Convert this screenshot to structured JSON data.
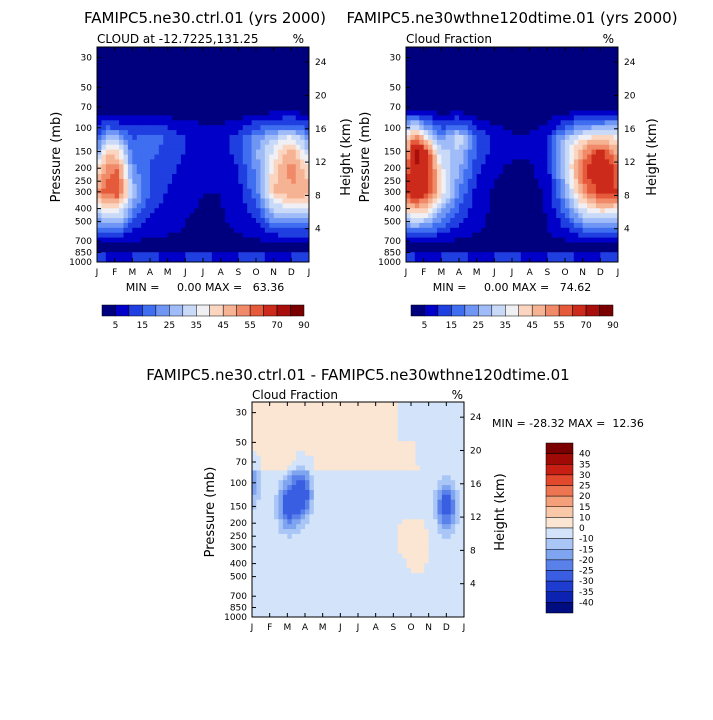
{
  "palette": {
    "sequential": [
      "#00007f",
      "#0000c8",
      "#1f3fe0",
      "#3f6ef0",
      "#6f96f5",
      "#9fbcf8",
      "#c9daf8",
      "#f0f0f4",
      "#fbd5c0",
      "#f5b394",
      "#f08a68",
      "#e65a3c",
      "#cc2a1a",
      "#a80f0a",
      "#7a0000"
    ],
    "diverging_positive": [
      "#fbe5d3",
      "#f8c8a8",
      "#f4a07a",
      "#ee7552",
      "#e2482c",
      "#c81f14",
      "#a00a06",
      "#7a0000"
    ],
    "diverging_negative": [
      "#d3e4fa",
      "#a9c6f6",
      "#7fa4f0",
      "#5a80ea",
      "#3a5ee2",
      "#1f3cd0",
      "#0c22b0",
      "#000d80"
    ]
  },
  "chart_data": [
    {
      "id": "ctrl",
      "type": "contour",
      "title": "FAMIPC5.ne30.ctrl.01 (yrs 2000)",
      "left_label": "CLOUD at -12.7225,131.25",
      "right_label": "%",
      "xlabel": "",
      "ylabel": "Pressure (mb)",
      "y2label": "Height (km)",
      "x_ticks": [
        "J",
        "F",
        "M",
        "A",
        "M",
        "J",
        "J",
        "A",
        "S",
        "O",
        "N",
        "D",
        "J"
      ],
      "y_ticks": [
        30,
        50,
        70,
        100,
        150,
        200,
        250,
        300,
        400,
        500,
        700,
        850,
        1000
      ],
      "y_range_mb": [
        1000,
        25
      ],
      "y2_ticks": [
        24,
        20,
        16,
        12,
        8,
        4
      ],
      "min_max_text": "MIN =     0.00 MAX =   63.36",
      "min": 0.0,
      "max": 63.36,
      "colorbar_labels": [
        "5",
        "15",
        "25",
        "35",
        "45",
        "55",
        "70",
        "90"
      ],
      "colorbar_levels": [
        0,
        5,
        10,
        15,
        20,
        25,
        30,
        35,
        40,
        45,
        50,
        55,
        60,
        70,
        80,
        90
      ],
      "peak_levels_mb": [
        300,
        200,
        150,
        120,
        100
      ],
      "profile": [
        {
          "month": 1,
          "vals": [
            50,
            38,
            22,
            14,
            10
          ]
        },
        {
          "month": 1.5,
          "vals": [
            58,
            52,
            42,
            28,
            16
          ]
        },
        {
          "month": 2.2,
          "vals": [
            60,
            55,
            40,
            28,
            14
          ]
        },
        {
          "month": 3,
          "vals": [
            30,
            22,
            18,
            14,
            10
          ]
        },
        {
          "month": 4,
          "vals": [
            14,
            14,
            16,
            18,
            12
          ]
        },
        {
          "month": 5,
          "vals": [
            10,
            12,
            14,
            14,
            10
          ]
        },
        {
          "month": 6,
          "vals": [
            6,
            8,
            10,
            10,
            8
          ]
        },
        {
          "month": 7,
          "vals": [
            5,
            6,
            8,
            8,
            6
          ]
        },
        {
          "month": 8,
          "vals": [
            5,
            6,
            8,
            8,
            6
          ]
        },
        {
          "month": 9,
          "vals": [
            8,
            10,
            12,
            12,
            8
          ]
        },
        {
          "month": 10,
          "vals": [
            18,
            22,
            24,
            22,
            14
          ]
        },
        {
          "month": 11,
          "vals": [
            45,
            42,
            36,
            30,
            18
          ]
        },
        {
          "month": 12,
          "vals": [
            50,
            52,
            48,
            38,
            20
          ]
        },
        {
          "month": 13,
          "vals": [
            48,
            40,
            30,
            22,
            14
          ]
        }
      ]
    },
    {
      "id": "exp",
      "type": "contour",
      "title": "FAMIPC5.ne30wthne120dtime.01 (yrs 2000)",
      "left_label": "Cloud Fraction",
      "right_label": "%",
      "xlabel": "",
      "ylabel": "Pressure (mb)",
      "y2label": "Height (km)",
      "x_ticks": [
        "J",
        "F",
        "M",
        "A",
        "M",
        "J",
        "J",
        "A",
        "S",
        "O",
        "N",
        "D",
        "J"
      ],
      "y_ticks": [
        30,
        50,
        70,
        100,
        150,
        200,
        250,
        300,
        400,
        500,
        700,
        850,
        1000
      ],
      "y_range_mb": [
        1000,
        25
      ],
      "y2_ticks": [
        24,
        20,
        16,
        12,
        8,
        4
      ],
      "min_max_text": "MIN =     0.00 MAX =   74.62",
      "min": 0.0,
      "max": 74.62,
      "colorbar_labels": [
        "5",
        "15",
        "25",
        "35",
        "45",
        "55",
        "70",
        "90"
      ],
      "colorbar_levels": [
        0,
        5,
        10,
        15,
        20,
        25,
        30,
        35,
        40,
        45,
        50,
        55,
        60,
        70,
        80,
        90
      ],
      "peak_levels_mb": [
        300,
        200,
        150,
        120,
        100
      ],
      "profile": [
        {
          "month": 1,
          "vals": [
            60,
            55,
            45,
            40,
            28
          ]
        },
        {
          "month": 1.5,
          "vals": [
            70,
            70,
            74,
            55,
            36
          ]
        },
        {
          "month": 2.2,
          "vals": [
            62,
            66,
            60,
            40,
            22
          ]
        },
        {
          "month": 3,
          "vals": [
            40,
            36,
            30,
            22,
            14
          ]
        },
        {
          "month": 4,
          "vals": [
            20,
            26,
            30,
            34,
            20
          ]
        },
        {
          "month": 5,
          "vals": [
            8,
            12,
            14,
            16,
            10
          ]
        },
        {
          "month": 6,
          "vals": [
            4,
            6,
            8,
            8,
            6
          ]
        },
        {
          "month": 7,
          "vals": [
            3,
            4,
            6,
            6,
            4
          ]
        },
        {
          "month": 8,
          "vals": [
            3,
            4,
            6,
            6,
            4
          ]
        },
        {
          "month": 9,
          "vals": [
            6,
            8,
            10,
            10,
            6
          ]
        },
        {
          "month": 10,
          "vals": [
            24,
            30,
            32,
            28,
            16
          ]
        },
        {
          "month": 11,
          "vals": [
            52,
            58,
            50,
            40,
            24
          ]
        },
        {
          "month": 12,
          "vals": [
            62,
            70,
            62,
            44,
            26
          ]
        },
        {
          "month": 13,
          "vals": [
            60,
            56,
            46,
            40,
            28
          ]
        }
      ]
    },
    {
      "id": "diff",
      "type": "contour",
      "title": "FAMIPC5.ne30.ctrl.01 - FAMIPC5.ne30wthne120dtime.01",
      "left_label": "Cloud Fraction",
      "right_label": "%",
      "xlabel": "",
      "ylabel": "Pressure (mb)",
      "y2label": "Height (km)",
      "x_ticks": [
        "J",
        "F",
        "M",
        "A",
        "M",
        "J",
        "J",
        "A",
        "S",
        "O",
        "N",
        "D",
        "J"
      ],
      "y_ticks": [
        30,
        50,
        70,
        100,
        150,
        200,
        250,
        300,
        400,
        500,
        700,
        850,
        1000
      ],
      "y_range_mb": [
        1000,
        25
      ],
      "y2_ticks": [
        24,
        20,
        16,
        12,
        8,
        4
      ],
      "min_max_text": "MIN = -28.32 MAX =  12.36",
      "min": -28.32,
      "max": 12.36,
      "colorbar_labels": [
        "40",
        "35",
        "30",
        "25",
        "20",
        "15",
        "10",
        "0",
        "-10",
        "-15",
        "-20",
        "-25",
        "-30",
        "-35",
        "-40"
      ],
      "colorbar_levels": [
        -40,
        -35,
        -30,
        -25,
        -20,
        -15,
        -10,
        0,
        10,
        15,
        20,
        25,
        30,
        35,
        40
      ],
      "notable_regions": [
        {
          "month": 1,
          "level_mb": 100,
          "value": -15
        },
        {
          "month": 3,
          "level_mb": 150,
          "value": -22
        },
        {
          "month": 3.8,
          "level_mb": 120,
          "value": -28.32
        },
        {
          "month": 12,
          "level_mb": 150,
          "value": -25
        },
        {
          "month": 9.5,
          "level_mb": 250,
          "value": 5
        },
        {
          "month": 4,
          "level_mb": 40,
          "value": 5
        },
        {
          "month": 6.5,
          "level_mb": 600,
          "value": 3
        },
        {
          "month": 10.4,
          "level_mb": 300,
          "value": 12.36
        }
      ]
    }
  ]
}
